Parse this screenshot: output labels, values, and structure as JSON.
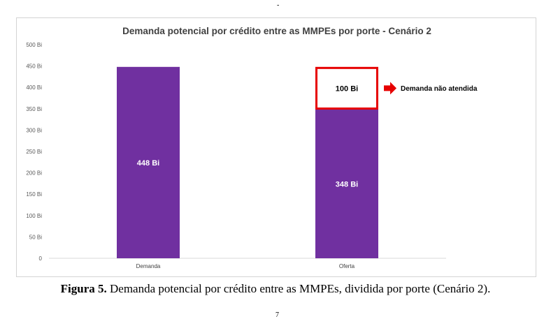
{
  "top_mark": "-",
  "bottom_mark": "7",
  "caption": {
    "label": "Figura 5.",
    "text": " Demanda potencial por crédito entre as MMPEs, dividida por porte (Cenário 2)."
  },
  "chart_data": {
    "type": "bar",
    "stacked": true,
    "title": "Demanda potencial por crédito entre as MMPEs por porte - Cenário 2",
    "xlabel": "",
    "ylabel": "",
    "categories": [
      "Demanda",
      "Oferta"
    ],
    "ylim": [
      0,
      500
    ],
    "yticks": [
      0,
      50,
      100,
      150,
      200,
      250,
      300,
      350,
      400,
      450,
      500
    ],
    "ytick_labels": [
      "0",
      "50 Bi",
      "100 Bi",
      "150 Bi",
      "200 Bi",
      "250 Bi",
      "300 Bi",
      "350 Bi",
      "400 Bi",
      "450 Bi",
      "500 Bi"
    ],
    "grid": false,
    "series": [
      {
        "values": [
          448,
          348
        ],
        "labels": [
          "448 Bi",
          "348 Bi"
        ],
        "color": "#7030a0"
      },
      {
        "values": [
          0,
          100
        ],
        "labels": [
          "",
          "100 Bi"
        ],
        "color": "#ffffff",
        "border": "#e60000"
      }
    ],
    "annotation": {
      "text": "Demanda não atendida",
      "arrow_color": "#e60000"
    }
  }
}
